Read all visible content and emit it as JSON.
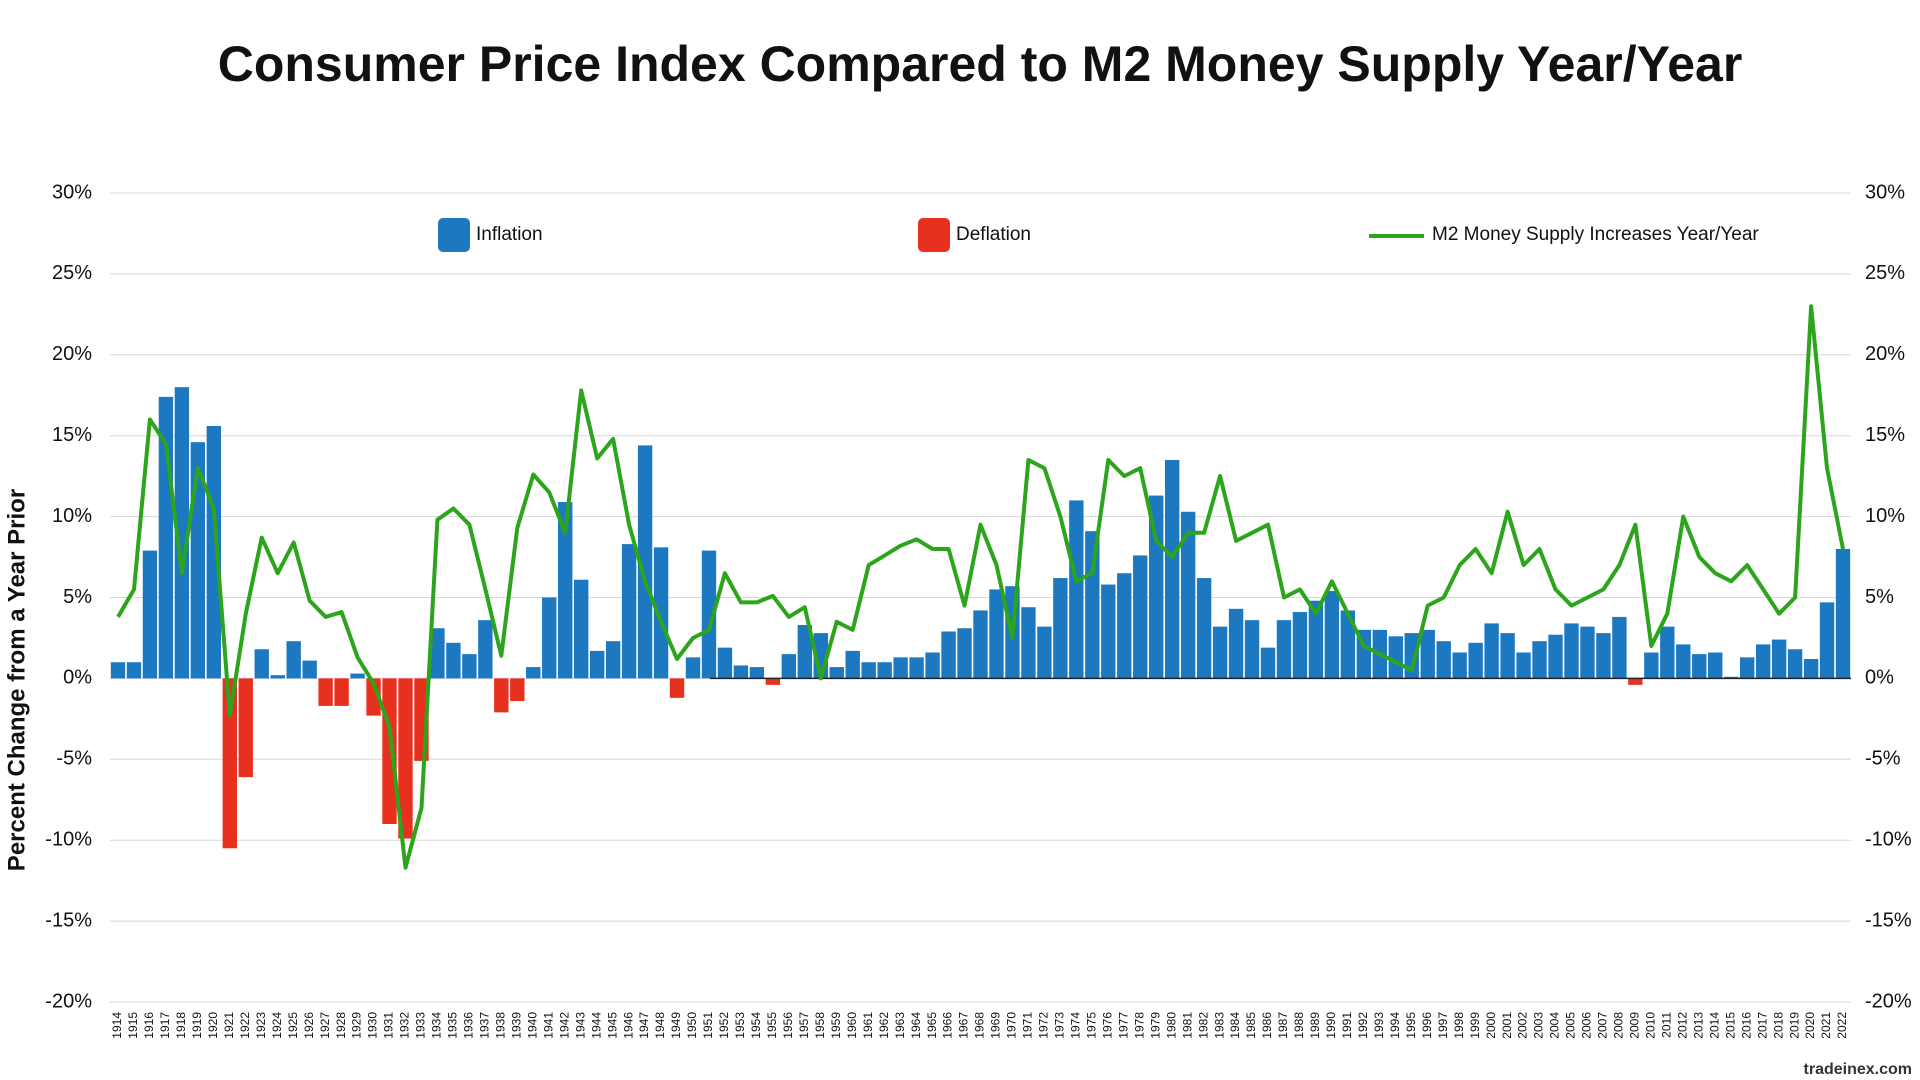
{
  "chart_data": {
    "type": "bar",
    "title": "Consumer Price Index Compared to M2 Money Supply Year/Year",
    "y_label": "Percent Change from a Year Prior",
    "watermark": "tradeinex.com",
    "categories": [
      "1914",
      "1915",
      "1916",
      "1917",
      "1918",
      "1919",
      "1920",
      "1921",
      "1922",
      "1923",
      "1924",
      "1925",
      "1926",
      "1927",
      "1928",
      "1929",
      "1930",
      "1931",
      "1932",
      "1933",
      "1934",
      "1935",
      "1936",
      "1937",
      "1938",
      "1939",
      "1940",
      "1941",
      "1942",
      "1943",
      "1944",
      "1945",
      "1946",
      "1947",
      "1948",
      "1949",
      "1950",
      "1951",
      "1952",
      "1953",
      "1954",
      "1955",
      "1956",
      "1957",
      "1958",
      "1959",
      "1960",
      "1961",
      "1962",
      "1963",
      "1964",
      "1965",
      "1966",
      "1967",
      "1968",
      "1969",
      "1970",
      "1971",
      "1972",
      "1973",
      "1974",
      "1975",
      "1976",
      "1977",
      "1978",
      "1979",
      "1980",
      "1981",
      "1982",
      "1983",
      "1984",
      "1985",
      "1986",
      "1987",
      "1988",
      "1989",
      "1990",
      "1991",
      "1992",
      "1993",
      "1994",
      "1995",
      "1996",
      "1997",
      "1998",
      "1999",
      "2000",
      "2001",
      "2002",
      "2003",
      "2004",
      "2005",
      "2006",
      "2007",
      "2008",
      "2009",
      "2010",
      "2011",
      "2012",
      "2013",
      "2014",
      "2015",
      "2016",
      "2017",
      "2018",
      "2019",
      "2020",
      "2021",
      "2022"
    ],
    "series": [
      {
        "name": "Inflation",
        "color": "#1c78c0",
        "values": [
          1.0,
          1.0,
          7.9,
          17.4,
          18.0,
          14.6,
          15.6,
          null,
          null,
          1.8,
          0.2,
          2.3,
          1.1,
          null,
          null,
          0.3,
          null,
          null,
          null,
          null,
          3.1,
          2.2,
          1.5,
          3.6,
          null,
          null,
          0.7,
          5.0,
          10.9,
          6.1,
          1.7,
          2.3,
          8.3,
          14.4,
          8.1,
          null,
          1.3,
          7.9,
          1.9,
          0.8,
          0.7,
          null,
          1.5,
          3.3,
          2.8,
          0.7,
          1.7,
          1.0,
          1.0,
          1.3,
          1.3,
          1.6,
          2.9,
          3.1,
          4.2,
          5.5,
          5.7,
          4.4,
          3.2,
          6.2,
          11.0,
          9.1,
          5.8,
          6.5,
          7.6,
          11.3,
          13.5,
          10.3,
          6.2,
          3.2,
          4.3,
          3.6,
          1.9,
          3.6,
          4.1,
          4.8,
          5.4,
          4.2,
          3.0,
          3.0,
          2.6,
          2.8,
          3.0,
          2.3,
          1.6,
          2.2,
          3.4,
          2.8,
          1.6,
          2.3,
          2.7,
          3.4,
          3.2,
          2.8,
          3.8,
          null,
          1.6,
          3.2,
          2.1,
          1.5,
          1.6,
          0.1,
          1.3,
          2.1,
          2.4,
          1.8,
          1.2,
          4.7,
          8.0
        ]
      },
      {
        "name": "Deflation",
        "color": "#e8301f",
        "values": [
          null,
          null,
          null,
          null,
          null,
          null,
          null,
          -10.5,
          -6.1,
          null,
          null,
          null,
          null,
          -1.7,
          -1.7,
          null,
          -2.3,
          -9.0,
          -9.9,
          -5.1,
          null,
          null,
          null,
          null,
          -2.1,
          -1.4,
          null,
          null,
          null,
          null,
          null,
          null,
          null,
          null,
          null,
          -1.2,
          null,
          null,
          null,
          null,
          null,
          -0.4,
          null,
          null,
          null,
          null,
          null,
          null,
          null,
          null,
          null,
          null,
          null,
          null,
          null,
          null,
          null,
          null,
          null,
          null,
          null,
          null,
          null,
          null,
          null,
          null,
          null,
          null,
          null,
          null,
          null,
          null,
          null,
          null,
          null,
          null,
          null,
          null,
          null,
          null,
          null,
          null,
          null,
          null,
          null,
          null,
          null,
          null,
          null,
          null,
          null,
          null,
          null,
          null,
          null,
          -0.4,
          null,
          null,
          null,
          null,
          null,
          null,
          null,
          null,
          null,
          null,
          null,
          null,
          null
        ]
      },
      {
        "name": "M2 Money Supply Increases Year/Year",
        "type": "line",
        "color": "#2ca41c",
        "values": [
          3.8,
          5.5,
          16,
          14.5,
          6.5,
          13,
          10.5,
          -2.3,
          4,
          8.7,
          6.5,
          8.4,
          4.8,
          3.8,
          4.1,
          1.3,
          -0.3,
          -3,
          -11.7,
          -8,
          9.8,
          10.5,
          9.5,
          5.5,
          1.4,
          9.3,
          12.6,
          11.5,
          9,
          17.8,
          13.6,
          14.8,
          9.5,
          6,
          3.5,
          1.2,
          2.5,
          3,
          6.5,
          4.7,
          4.7,
          5.1,
          3.8,
          4.4,
          0,
          3.5,
          3,
          7,
          7.6,
          8.2,
          8.6,
          8,
          8,
          4.5,
          9.5,
          7,
          2.5,
          13.5,
          13,
          10,
          6,
          6.5,
          13.5,
          12.5,
          13,
          8.5,
          7.5,
          9,
          9,
          12.5,
          8.5,
          9,
          9.5,
          5,
          5.5,
          4,
          6,
          4,
          2,
          1.5,
          1,
          0.5,
          4.5,
          5,
          7,
          8,
          6.5,
          10.3,
          7,
          8,
          5.5,
          4.5,
          5,
          5.5,
          7,
          9.5,
          2,
          4,
          10,
          7.5,
          6.5,
          6,
          7,
          5.5,
          4,
          5,
          23,
          13,
          8
        ]
      }
    ],
    "ylim": [
      -20,
      30
    ],
    "yticks": [
      {
        "value": -20,
        "label": "-20%"
      },
      {
        "value": -15,
        "label": "-15%"
      },
      {
        "value": -10,
        "label": "-10%"
      },
      {
        "value": -5,
        "label": "-5%"
      },
      {
        "value": 0,
        "label": "0%"
      },
      {
        "value": 5,
        "label": "5%"
      },
      {
        "value": 10,
        "label": "10%"
      },
      {
        "value": 15,
        "label": "15%"
      },
      {
        "value": 20,
        "label": "20%"
      },
      {
        "value": 25,
        "label": "25%"
      },
      {
        "value": 30,
        "label": "30%"
      }
    ],
    "grid": true
  }
}
